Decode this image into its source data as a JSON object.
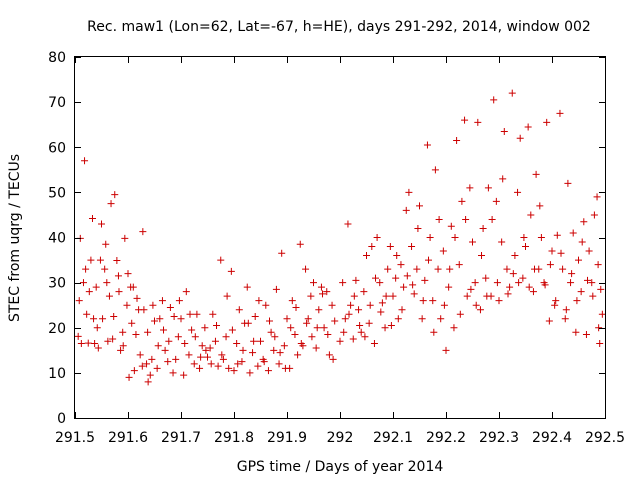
{
  "chart_data": {
    "type": "scatter",
    "title": "Rec. maw1 (Lon=62, Lat=-67, h=HE), days 291-292, 2014, window 002",
    "xlabel": "GPS time / Days of year 2014",
    "ylabel": "STEC from uqrg / TECUs",
    "xlim": [
      291.5,
      292.5
    ],
    "ylim": [
      0,
      80
    ],
    "x_ticks": [
      291.5,
      291.6,
      291.7,
      291.8,
      291.9,
      292,
      292.1,
      292.2,
      292.3,
      292.4,
      292.5
    ],
    "x_tick_labels": [
      "291.5",
      "291.6",
      "291.7",
      "291.8",
      "291.9",
      "292",
      "292.1",
      "292.2",
      "292.3",
      "292.4",
      "292.5"
    ],
    "y_ticks": [
      0,
      10,
      20,
      30,
      40,
      50,
      60,
      70,
      80
    ],
    "y_tick_labels": [
      "0",
      "10",
      "20",
      "30",
      "40",
      "50",
      "60",
      "70",
      "80"
    ],
    "marker": "+",
    "color": "#cc0000",
    "grid": false,
    "points": [
      [
        291.506,
        18.1
      ],
      [
        291.516,
        30.0
      ],
      [
        291.518,
        57.0
      ],
      [
        291.525,
        16.6
      ],
      [
        291.533,
        44.2
      ],
      [
        291.54,
        29.0
      ],
      [
        291.548,
        35.0
      ],
      [
        291.556,
        33.0
      ],
      [
        291.562,
        17.0
      ],
      [
        291.568,
        47.5
      ],
      [
        291.575,
        49.5
      ],
      [
        291.582,
        31.5
      ],
      [
        291.59,
        19.0
      ],
      [
        291.598,
        25.0
      ],
      [
        291.605,
        29.0
      ],
      [
        291.612,
        10.5
      ],
      [
        291.62,
        24.0
      ],
      [
        291.628,
        41.3
      ],
      [
        291.635,
        12.0
      ],
      [
        291.642,
        9.5
      ],
      [
        291.51,
        39.8
      ],
      [
        291.512,
        16.5
      ],
      [
        291.522,
        23.0
      ],
      [
        291.53,
        35.0
      ],
      [
        291.537,
        16.5
      ],
      [
        291.544,
        15.5
      ],
      [
        291.552,
        22.0
      ],
      [
        291.56,
        30.0
      ],
      [
        291.571,
        17.5
      ],
      [
        291.579,
        34.9
      ],
      [
        291.586,
        15.0
      ],
      [
        291.594,
        39.8
      ],
      [
        291.602,
        9.0
      ],
      [
        291.61,
        29.0
      ],
      [
        291.615,
        18.5
      ],
      [
        291.623,
        14.0
      ],
      [
        291.63,
        24.0
      ],
      [
        291.638,
        8.0
      ],
      [
        291.645,
        13.0
      ],
      [
        291.65,
        21.5
      ],
      [
        291.655,
        11.0
      ],
      [
        291.66,
        22.0
      ],
      [
        291.665,
        26.0
      ],
      [
        291.67,
        15.0
      ],
      [
        291.675,
        12.5
      ],
      [
        291.68,
        24.5
      ],
      [
        291.685,
        10.0
      ],
      [
        291.69,
        13.0
      ],
      [
        291.695,
        18.0
      ],
      [
        291.7,
        22.0
      ],
      [
        291.705,
        9.5
      ],
      [
        291.71,
        28.0
      ],
      [
        291.715,
        14.0
      ],
      [
        291.72,
        19.5
      ],
      [
        291.725,
        12.0
      ],
      [
        291.73,
        23.0
      ],
      [
        291.735,
        11.0
      ],
      [
        291.74,
        16.0
      ],
      [
        291.745,
        20.0
      ],
      [
        291.75,
        13.5
      ],
      [
        291.755,
        15.5
      ],
      [
        291.76,
        23.0
      ],
      [
        291.765,
        17.0
      ],
      [
        291.77,
        11.5
      ],
      [
        291.775,
        35.0
      ],
      [
        291.78,
        13.0
      ],
      [
        291.785,
        18.0
      ],
      [
        291.79,
        11.0
      ],
      [
        291.795,
        32.5
      ],
      [
        291.8,
        10.5
      ],
      [
        291.805,
        16.5
      ],
      [
        291.81,
        24.0
      ],
      [
        291.815,
        12.5
      ],
      [
        291.82,
        21.0
      ],
      [
        291.825,
        29.0
      ],
      [
        291.83,
        10.0
      ],
      [
        291.835,
        14.5
      ],
      [
        291.84,
        22.5
      ],
      [
        291.845,
        11.5
      ],
      [
        291.85,
        17.0
      ],
      [
        291.855,
        13.0
      ],
      [
        291.86,
        25.0
      ],
      [
        291.865,
        10.5
      ],
      [
        291.87,
        19.0
      ],
      [
        291.875,
        15.0
      ],
      [
        291.88,
        28.5
      ],
      [
        291.885,
        12.0
      ],
      [
        291.89,
        36.5
      ],
      [
        291.895,
        16.0
      ],
      [
        291.9,
        22.0
      ],
      [
        291.905,
        11.0
      ],
      [
        291.91,
        26.0
      ],
      [
        291.915,
        18.5
      ],
      [
        291.92,
        14.0
      ],
      [
        291.925,
        38.5
      ],
      [
        291.93,
        16.0
      ],
      [
        291.935,
        33.0
      ],
      [
        291.94,
        22.0
      ],
      [
        291.945,
        27.0
      ],
      [
        291.95,
        30.0
      ],
      [
        291.955,
        15.5
      ],
      [
        291.96,
        24.0
      ],
      [
        291.965,
        29.0
      ],
      [
        291.97,
        20.0
      ],
      [
        291.975,
        28.0
      ],
      [
        291.98,
        14.0
      ],
      [
        291.985,
        25.0
      ],
      [
        291.99,
        21.5
      ],
      [
        292.0,
        17.0
      ],
      [
        292.005,
        30.0
      ],
      [
        292.01,
        22.0
      ],
      [
        292.015,
        43.0
      ],
      [
        292.02,
        25.0
      ],
      [
        292.025,
        17.5
      ],
      [
        292.03,
        30.5
      ],
      [
        292.035,
        24.0
      ],
      [
        292.04,
        19.0
      ],
      [
        292.045,
        28.0
      ],
      [
        292.05,
        36.0
      ],
      [
        292.055,
        21.0
      ],
      [
        292.06,
        38.0
      ],
      [
        292.065,
        16.5
      ],
      [
        292.07,
        40.0
      ],
      [
        292.075,
        30.0
      ],
      [
        292.08,
        25.5
      ],
      [
        292.085,
        20.0
      ],
      [
        292.09,
        33.0
      ],
      [
        292.095,
        38.0
      ],
      [
        292.1,
        27.0
      ],
      [
        292.105,
        31.0
      ],
      [
        292.11,
        22.0
      ],
      [
        292.115,
        34.0
      ],
      [
        292.12,
        29.0
      ],
      [
        292.125,
        46.0
      ],
      [
        292.13,
        50.0
      ],
      [
        292.135,
        38.0
      ],
      [
        292.14,
        27.5
      ],
      [
        292.145,
        33.0
      ],
      [
        292.15,
        47.0
      ],
      [
        292.155,
        22.0
      ],
      [
        292.16,
        30.5
      ],
      [
        292.165,
        60.5
      ],
      [
        292.17,
        40.0
      ],
      [
        292.175,
        26.0
      ],
      [
        292.18,
        55.0
      ],
      [
        292.185,
        33.0
      ],
      [
        292.19,
        22.0
      ],
      [
        292.195,
        37.0
      ],
      [
        292.2,
        15.0
      ],
      [
        292.205,
        29.0
      ],
      [
        292.21,
        42.5
      ],
      [
        292.215,
        20.0
      ],
      [
        292.22,
        61.5
      ],
      [
        292.225,
        34.0
      ],
      [
        292.23,
        48.0
      ],
      [
        292.235,
        66.0
      ],
      [
        292.24,
        27.0
      ],
      [
        292.245,
        51.0
      ],
      [
        292.25,
        39.0
      ],
      [
        292.255,
        30.0
      ],
      [
        292.26,
        65.5
      ],
      [
        292.265,
        24.0
      ],
      [
        292.27,
        42.0
      ],
      [
        292.275,
        31.0
      ],
      [
        292.28,
        51.0
      ],
      [
        292.285,
        27.0
      ],
      [
        292.29,
        70.5
      ],
      [
        292.295,
        48.0
      ],
      [
        292.3,
        26.0
      ],
      [
        292.305,
        39.0
      ],
      [
        292.31,
        63.5
      ],
      [
        292.315,
        33.0
      ],
      [
        292.32,
        29.0
      ],
      [
        292.325,
        72.0
      ],
      [
        292.33,
        36.0
      ],
      [
        292.335,
        50.0
      ],
      [
        292.34,
        62.0
      ],
      [
        292.345,
        31.0
      ],
      [
        292.35,
        38.0
      ],
      [
        292.355,
        64.5
      ],
      [
        292.36,
        45.0
      ],
      [
        292.365,
        28.0
      ],
      [
        292.37,
        54.0
      ],
      [
        292.375,
        33.0
      ],
      [
        292.38,
        40.0
      ],
      [
        292.385,
        30.0
      ],
      [
        292.39,
        65.5
      ],
      [
        292.395,
        21.5
      ],
      [
        292.4,
        37.0
      ],
      [
        292.405,
        25.0
      ],
      [
        292.41,
        40.5
      ],
      [
        292.415,
        67.5
      ],
      [
        292.42,
        33.0
      ],
      [
        292.425,
        22.0
      ],
      [
        292.43,
        52.0
      ],
      [
        292.435,
        30.0
      ],
      [
        292.44,
        41.0
      ],
      [
        292.445,
        19.0
      ],
      [
        292.45,
        35.0
      ],
      [
        292.455,
        28.0
      ],
      [
        292.46,
        43.5
      ],
      [
        292.465,
        18.5
      ],
      [
        292.47,
        37.0
      ],
      [
        292.475,
        30.0
      ],
      [
        292.48,
        45.0
      ],
      [
        292.485,
        49.0
      ],
      [
        292.488,
        20.0
      ],
      [
        292.49,
        16.5
      ],
      [
        292.492,
        28.5
      ],
      [
        292.495,
        23.0
      ],
      [
        291.508,
        26.0
      ],
      [
        291.52,
        33.0
      ],
      [
        291.527,
        28.0
      ],
      [
        291.535,
        22.0
      ],
      [
        291.542,
        20.0
      ],
      [
        291.55,
        43.0
      ],
      [
        291.558,
        38.5
      ],
      [
        291.565,
        27.0
      ],
      [
        291.573,
        22.5
      ],
      [
        291.583,
        28.0
      ],
      [
        291.591,
        16.0
      ],
      [
        291.6,
        32.0
      ],
      [
        291.607,
        21.0
      ],
      [
        291.617,
        26.5
      ],
      [
        291.627,
        11.5
      ],
      [
        291.637,
        19.0
      ],
      [
        291.647,
        25.0
      ],
      [
        291.657,
        16.0
      ],
      [
        291.667,
        19.5
      ],
      [
        291.677,
        17.0
      ],
      [
        291.687,
        22.5
      ],
      [
        291.697,
        26.0
      ],
      [
        291.707,
        16.5
      ],
      [
        291.717,
        23.0
      ],
      [
        291.727,
        18.0
      ],
      [
        291.737,
        13.5
      ],
      [
        291.747,
        15.0
      ],
      [
        291.757,
        12.0
      ],
      [
        291.767,
        20.5
      ],
      [
        291.777,
        14.0
      ],
      [
        291.787,
        27.0
      ],
      [
        291.797,
        19.5
      ],
      [
        291.807,
        12.0
      ],
      [
        291.817,
        15.0
      ],
      [
        291.827,
        21.0
      ],
      [
        291.837,
        17.0
      ],
      [
        291.847,
        26.0
      ],
      [
        291.857,
        12.5
      ],
      [
        291.867,
        21.5
      ],
      [
        291.877,
        18.0
      ],
      [
        291.887,
        14.5
      ],
      [
        291.897,
        11.0
      ],
      [
        291.907,
        20.0
      ],
      [
        291.917,
        24.5
      ],
      [
        291.927,
        16.5
      ],
      [
        291.937,
        21.0
      ],
      [
        291.947,
        18.0
      ],
      [
        291.957,
        20.0
      ],
      [
        291.967,
        27.5
      ],
      [
        291.977,
        18.5
      ],
      [
        291.987,
        13.0
      ],
      [
        292.007,
        19.0
      ],
      [
        292.017,
        23.0
      ],
      [
        292.027,
        27.0
      ],
      [
        292.037,
        20.5
      ],
      [
        292.047,
        18.0
      ],
      [
        292.057,
        25.0
      ],
      [
        292.067,
        31.0
      ],
      [
        292.077,
        23.5
      ],
      [
        292.087,
        27.0
      ],
      [
        292.097,
        20.5
      ],
      [
        292.107,
        36.0
      ],
      [
        292.117,
        24.0
      ],
      [
        292.127,
        31.5
      ],
      [
        292.137,
        29.5
      ],
      [
        292.147,
        42.0
      ],
      [
        292.157,
        26.0
      ],
      [
        292.167,
        35.0
      ],
      [
        292.177,
        19.0
      ],
      [
        292.187,
        44.0
      ],
      [
        292.197,
        25.0
      ],
      [
        292.207,
        33.0
      ],
      [
        292.217,
        40.0
      ],
      [
        292.227,
        23.0
      ],
      [
        292.237,
        44.0
      ],
      [
        292.247,
        28.5
      ],
      [
        292.257,
        25.0
      ],
      [
        292.267,
        36.0
      ],
      [
        292.277,
        27.0
      ],
      [
        292.287,
        44.0
      ],
      [
        292.297,
        30.0
      ],
      [
        292.307,
        53.0
      ],
      [
        292.317,
        27.5
      ],
      [
        292.327,
        32.0
      ],
      [
        292.337,
        30.0
      ],
      [
        292.347,
        40.0
      ],
      [
        292.357,
        29.0
      ],
      [
        292.367,
        33.0
      ],
      [
        292.377,
        47.0
      ],
      [
        292.387,
        29.5
      ],
      [
        292.397,
        34.0
      ],
      [
        292.407,
        26.0
      ],
      [
        292.417,
        36.5
      ],
      [
        292.427,
        24.0
      ],
      [
        292.437,
        32.0
      ],
      [
        292.447,
        26.0
      ],
      [
        292.457,
        39.0
      ],
      [
        292.467,
        30.5
      ],
      [
        292.477,
        27.0
      ],
      [
        292.487,
        34.0
      ]
    ]
  }
}
